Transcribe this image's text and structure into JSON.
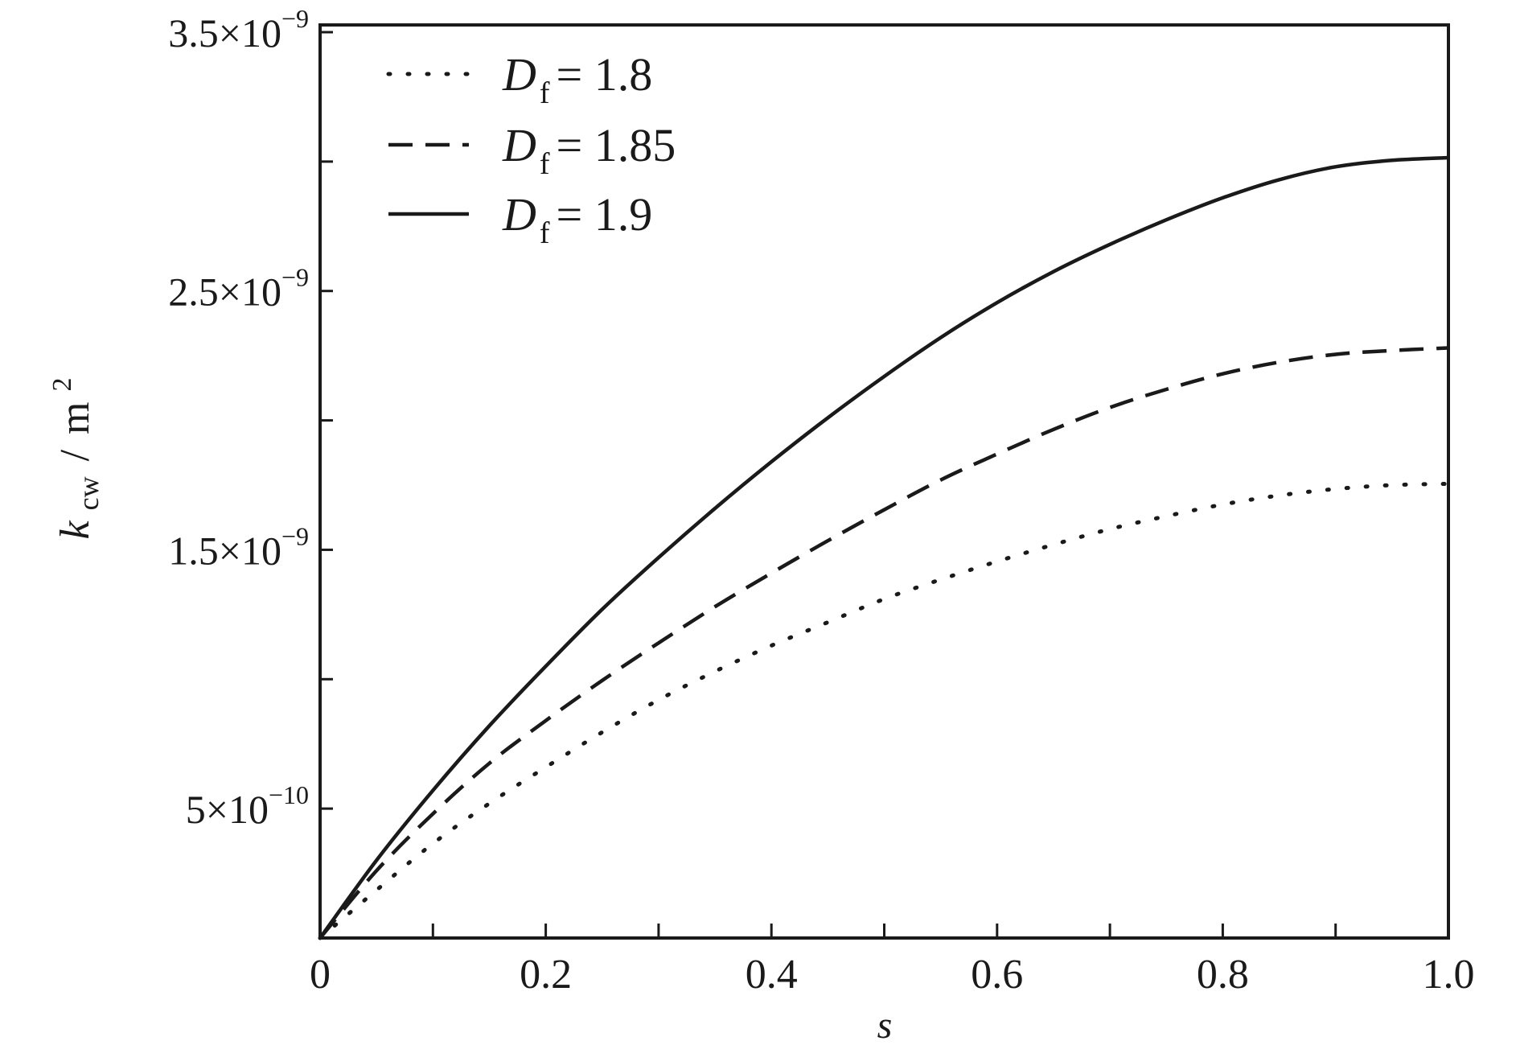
{
  "chart_data": {
    "type": "line",
    "xlabel": "s",
    "ylabel": {
      "base": "k",
      "sub": "cw",
      "unit": "m",
      "unit_sup": "2"
    },
    "xlim": [
      0,
      1.0
    ],
    "ylim": [
      0,
      3.5e-09
    ],
    "x_ticks": [
      {
        "value": 0,
        "label": "0"
      },
      {
        "value": 0.2,
        "label": "0.2"
      },
      {
        "value": 0.4,
        "label": "0.4"
      },
      {
        "value": 0.6,
        "label": "0.6"
      },
      {
        "value": 0.8,
        "label": "0.8"
      },
      {
        "value": 1.0,
        "label": "1.0"
      }
    ],
    "x_minor_ticks": [
      0.1,
      0.3,
      0.5,
      0.7,
      0.9
    ],
    "y_ticks": [
      {
        "value": 5e-10,
        "mantissa": "5",
        "exponent": "−10"
      },
      {
        "value": 1.5e-09,
        "mantissa": "1.5",
        "exponent": "−9"
      },
      {
        "value": 2.5e-09,
        "mantissa": "2.5",
        "exponent": "−9"
      },
      {
        "value": 3.5e-09,
        "mantissa": "3.5",
        "exponent": "−9"
      }
    ],
    "y_minor_ticks": [
      1e-09,
      2e-09,
      3e-09
    ],
    "legend_position": "top-left",
    "grid": false,
    "series": [
      {
        "name": "D_f = 1.8",
        "label_base": "D",
        "label_sub": "f",
        "label_value": "= 1.8",
        "style": "dotted",
        "x": [
          0,
          0.05,
          0.1,
          0.15,
          0.2,
          0.25,
          0.3,
          0.35,
          0.4,
          0.45,
          0.5,
          0.55,
          0.6,
          0.65,
          0.7,
          0.75,
          0.8,
          0.85,
          0.9,
          0.95,
          1.0
        ],
        "values": [
          0,
          1.85e-10,
          3.65e-10,
          5.2e-10,
          6.6e-10,
          7.95e-10,
          9.2e-10,
          1.03e-09,
          1.13e-09,
          1.22e-09,
          1.31e-09,
          1.385e-09,
          1.455e-09,
          1.52e-09,
          1.58e-09,
          1.63e-09,
          1.675e-09,
          1.71e-09,
          1.735e-09,
          1.75e-09,
          1.755e-09
        ]
      },
      {
        "name": "D_f = 1.85",
        "label_base": "D",
        "label_sub": "f",
        "label_value": "= 1.85",
        "style": "dashed",
        "x": [
          0,
          0.05,
          0.1,
          0.15,
          0.2,
          0.25,
          0.3,
          0.35,
          0.4,
          0.45,
          0.5,
          0.55,
          0.6,
          0.65,
          0.7,
          0.75,
          0.8,
          0.85,
          0.9,
          0.95,
          1.0
        ],
        "values": [
          0,
          2.6e-10,
          4.8e-10,
          6.75e-10,
          8.4e-10,
          9.95e-10,
          1.14e-09,
          1.28e-09,
          1.41e-09,
          1.535e-09,
          1.655e-09,
          1.77e-09,
          1.87e-09,
          1.965e-09,
          2.05e-09,
          2.12e-09,
          2.18e-09,
          2.225e-09,
          2.255e-09,
          2.27e-09,
          2.28e-09
        ]
      },
      {
        "name": "D_f = 1.9",
        "label_base": "D",
        "label_sub": "f",
        "label_value": "= 1.9",
        "style": "solid",
        "x": [
          0,
          0.05,
          0.1,
          0.15,
          0.2,
          0.25,
          0.3,
          0.35,
          0.4,
          0.45,
          0.5,
          0.55,
          0.6,
          0.65,
          0.7,
          0.75,
          0.8,
          0.85,
          0.9,
          0.95,
          1.0
        ],
        "values": [
          0,
          3e-10,
          5.7e-10,
          8.2e-10,
          1.05e-09,
          1.27e-09,
          1.47e-09,
          1.66e-09,
          1.84e-09,
          2.01e-09,
          2.17e-09,
          2.32e-09,
          2.455e-09,
          2.575e-09,
          2.68e-09,
          2.775e-09,
          2.86e-09,
          2.93e-09,
          2.98e-09,
          3.005e-09,
          3.015e-09
        ]
      }
    ]
  }
}
